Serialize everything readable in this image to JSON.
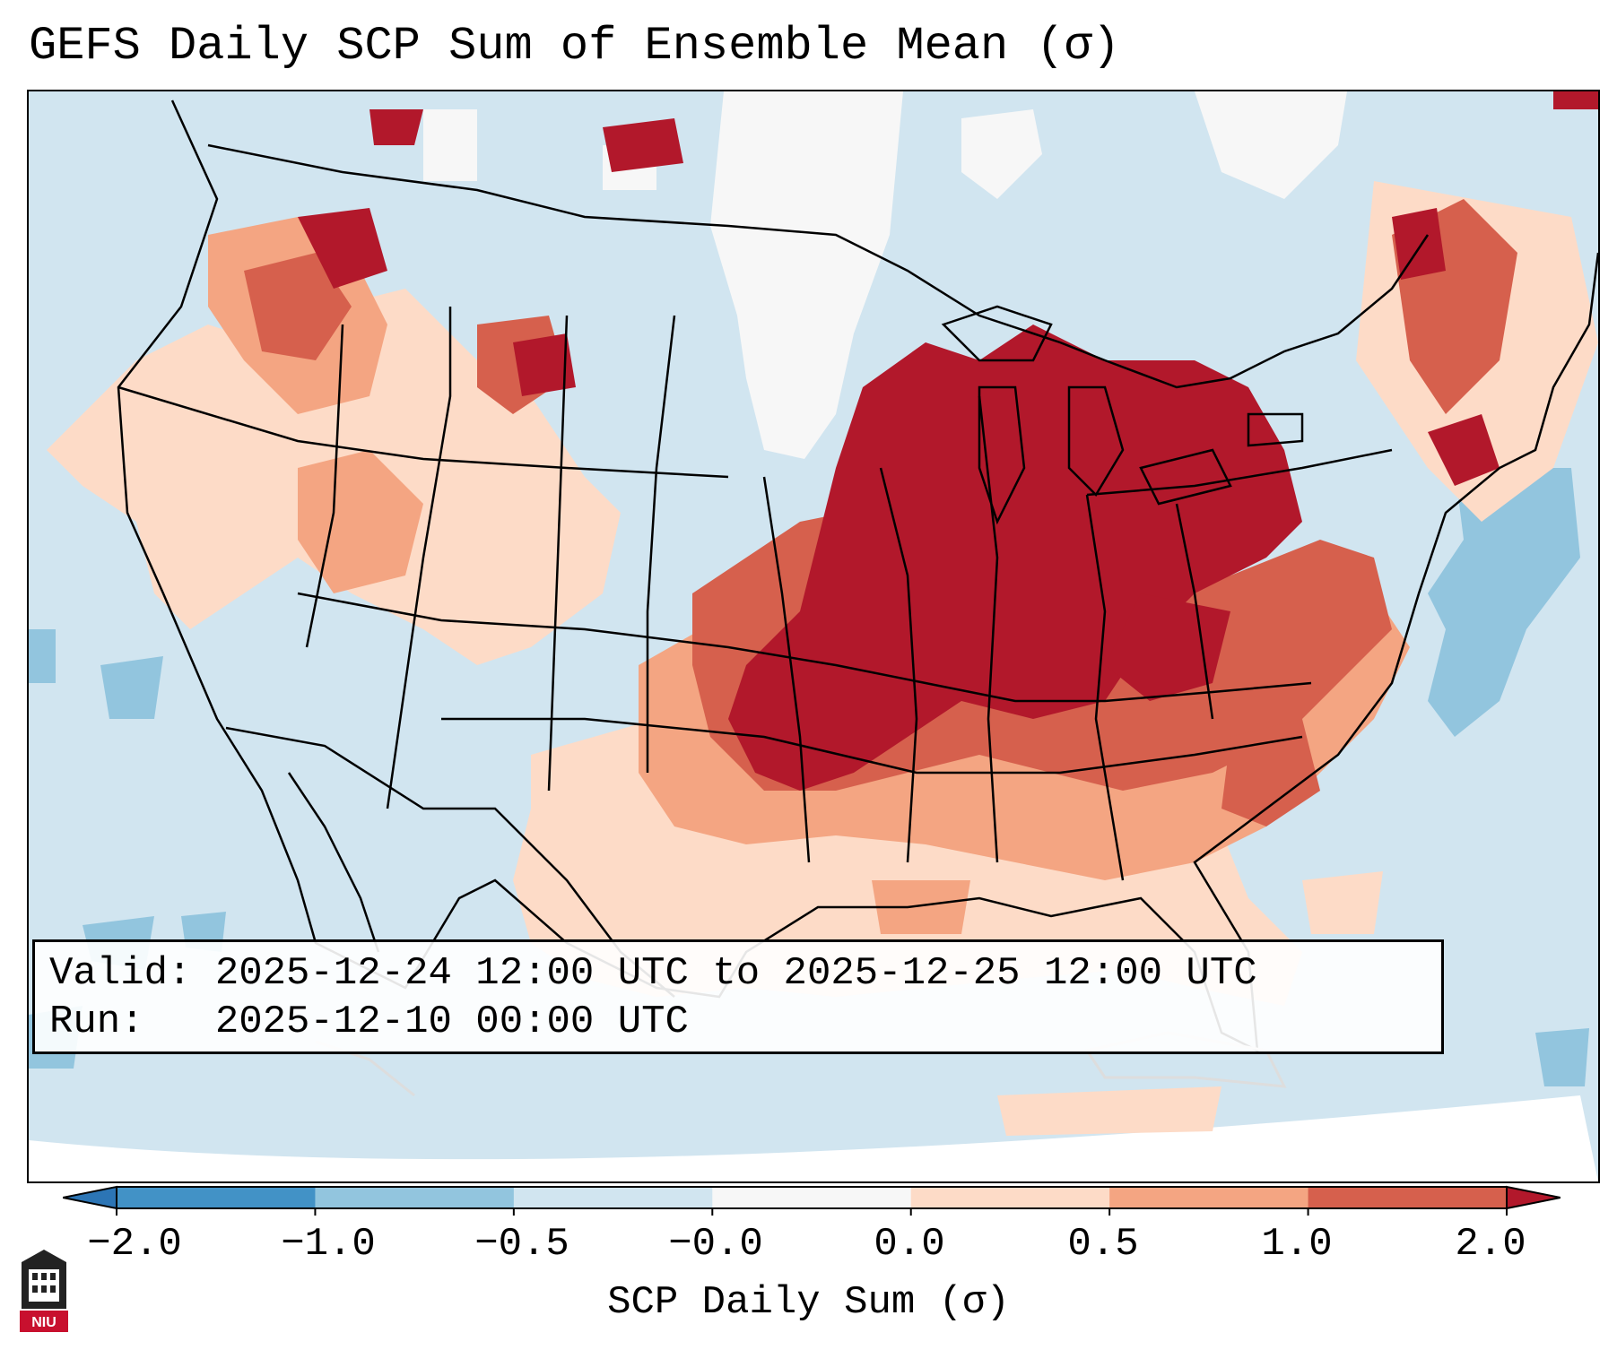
{
  "title": "GEFS Daily SCP Sum of Ensemble Mean (σ)",
  "info": {
    "valid_label": "Valid:",
    "valid_value": "2025-12-24 12:00 UTC to 2025-12-25 12:00 UTC",
    "run_label": "Run:",
    "run_value": "2025-12-10 00:00 UTC"
  },
  "colorbar": {
    "title": "SCP Daily Sum (σ)",
    "tick_labels": [
      "−2.0",
      "−1.0",
      "−0.5",
      "−0.0",
      "0.0",
      "0.5",
      "1.0",
      "2.0"
    ],
    "bins": [
      {
        "range": "< -2.0",
        "color": "#2c75b5"
      },
      {
        "range": "-2.0 to -1.0",
        "color": "#4292c6"
      },
      {
        "range": "-1.0 to -0.5",
        "color": "#92c5de"
      },
      {
        "range": "-0.5 to -0.0",
        "color": "#d1e5f0"
      },
      {
        "range": "-0.0 to 0.0",
        "color": "#f7f7f7"
      },
      {
        "range": "0.0 to 0.5",
        "color": "#fddbc7"
      },
      {
        "range": "0.5 to 1.0",
        "color": "#f4a582"
      },
      {
        "range": "1.0 to 2.0",
        "color": "#d6604d"
      },
      {
        "range": "> 2.0",
        "color": "#b2182b"
      }
    ]
  },
  "map": {
    "projection": "Lambert Conformal, CONUS",
    "background_color": "#d1e5f0",
    "regions": [
      {
        "name": "central-us-strong-positive",
        "level": "> 2.0",
        "color": "#b2182b"
      },
      {
        "name": "great-lakes-strong-positive",
        "level": "> 2.0",
        "color": "#b2182b"
      },
      {
        "name": "ohio-valley-strong-positive",
        "level": "> 2.0",
        "color": "#b2182b"
      },
      {
        "name": "southeast-moderate-positive",
        "level": "1.0 to 2.0",
        "color": "#d6604d"
      },
      {
        "name": "gulf-coast-weak-positive",
        "level": "0.0 to 0.5",
        "color": "#fddbc7"
      },
      {
        "name": "northern-plains-near-zero",
        "level": "-0.0 to 0.0",
        "color": "#f7f7f7"
      },
      {
        "name": "atlantic-negative",
        "level": "-1.0 to -0.5",
        "color": "#92c5de"
      },
      {
        "name": "pacific-negative",
        "level": "-1.0 to -0.5",
        "color": "#92c5de"
      }
    ]
  },
  "logo": {
    "text": "NIU",
    "color": "#c8102e"
  }
}
